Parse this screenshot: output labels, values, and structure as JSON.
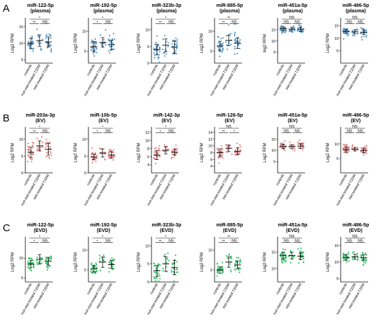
{
  "row_letters": [
    "A",
    "B",
    "C"
  ],
  "categories": [
    "controls",
    "non-met treated T2DM",
    "met treated T2DM"
  ],
  "chart_data": [
    {
      "row": "A",
      "type": "scatter",
      "title": "miR-122-5p",
      "subtitle": "(plasma)",
      "ylabel": "Log2 RPM",
      "ylim": [
        4,
        16
      ],
      "yticks": [
        5,
        10,
        15
      ],
      "series": [
        {
          "name": "controls",
          "center": 10,
          "sd": 1.5,
          "n": 30
        },
        {
          "name": "non-met treated T2DM",
          "center": 10.8,
          "sd": 1.7,
          "n": 12
        },
        {
          "name": "met treated T2DM",
          "center": 10.4,
          "sd": 1.5,
          "n": 25
        }
      ],
      "annotations": [
        {
          "from": 0,
          "to": 2,
          "label": "*"
        },
        {
          "from": 0,
          "to": 1,
          "label": "**"
        },
        {
          "from": 1,
          "to": 2,
          "label": "NS"
        }
      ]
    },
    {
      "row": "A",
      "type": "scatter",
      "title": "miR-192-5p",
      "subtitle": "(plasma)",
      "ylabel": "Log2 RPM",
      "ylim": [
        2,
        12
      ],
      "yticks": [
        5,
        10
      ],
      "series": [
        {
          "name": "controls",
          "center": 6.1,
          "sd": 1.3,
          "n": 30
        },
        {
          "name": "non-met treated T2DM",
          "center": 7.2,
          "sd": 1.2,
          "n": 12
        },
        {
          "name": "met treated T2DM",
          "center": 6.6,
          "sd": 1.2,
          "n": 25
        }
      ],
      "annotations": [
        {
          "from": 0,
          "to": 2,
          "label": "*"
        },
        {
          "from": 0,
          "to": 1,
          "label": "*"
        },
        {
          "from": 1,
          "to": 2,
          "label": "NS"
        }
      ]
    },
    {
      "row": "A",
      "type": "scatter",
      "title": "miR-323b-3p",
      "subtitle": "(plasma)",
      "ylabel": "Log2 RPM",
      "ylim": [
        0,
        12
      ],
      "yticks": [
        0,
        5,
        10
      ],
      "series": [
        {
          "name": "controls",
          "center": 4.1,
          "sd": 1.6,
          "n": 30
        },
        {
          "name": "non-met treated T2DM",
          "center": 5.4,
          "sd": 1.9,
          "n": 12
        },
        {
          "name": "met treated T2DM",
          "center": 4.8,
          "sd": 1.8,
          "n": 25
        }
      ],
      "annotations": [
        {
          "from": 0,
          "to": 2,
          "label": "*"
        },
        {
          "from": 0,
          "to": 1,
          "label": "**"
        },
        {
          "from": 1,
          "to": 2,
          "label": "NS"
        }
      ]
    },
    {
      "row": "A",
      "type": "scatter",
      "title": "miR-885-5p",
      "subtitle": "(plasma)",
      "ylabel": "Log2 RPM",
      "ylim": [
        2,
        12
      ],
      "yticks": [
        5,
        10
      ],
      "series": [
        {
          "name": "controls",
          "center": 6.3,
          "sd": 1.2,
          "n": 30
        },
        {
          "name": "non-met treated T2DM",
          "center": 7.7,
          "sd": 1.3,
          "n": 12
        },
        {
          "name": "met treated T2DM",
          "center": 7.0,
          "sd": 1.3,
          "n": 25
        }
      ],
      "annotations": [
        {
          "from": 0,
          "to": 2,
          "label": "**"
        },
        {
          "from": 0,
          "to": 1,
          "label": "**"
        },
        {
          "from": 1,
          "to": 2,
          "label": "NS"
        }
      ]
    },
    {
      "row": "A",
      "type": "scatter",
      "title": "miR-451a-5p",
      "subtitle": "(plasma)",
      "ylabel": "log2 RPM",
      "ylim": [
        0,
        18
      ],
      "yticks": [
        5,
        10,
        15
      ],
      "series": [
        {
          "name": "controls",
          "center": 15.6,
          "sd": 0.8,
          "n": 30
        },
        {
          "name": "non-met treated T2DM",
          "center": 15.4,
          "sd": 0.8,
          "n": 12
        },
        {
          "name": "met treated T2DM",
          "center": 15.3,
          "sd": 0.9,
          "n": 25
        }
      ],
      "annotations": [
        {
          "from": 0,
          "to": 2,
          "label": "NS"
        },
        {
          "from": 0,
          "to": 1,
          "label": "NS"
        },
        {
          "from": 1,
          "to": 2,
          "label": "NS"
        }
      ]
    },
    {
      "row": "A",
      "type": "scatter",
      "title": "miR-486-5p",
      "subtitle": "(plasma)",
      "ylabel": "Log2 RPM",
      "ylim": [
        0,
        16
      ],
      "yticks": [
        5,
        10,
        15
      ],
      "series": [
        {
          "name": "controls",
          "center": 12.8,
          "sd": 0.9,
          "n": 30
        },
        {
          "name": "non-met treated T2DM",
          "center": 12.6,
          "sd": 0.8,
          "n": 12
        },
        {
          "name": "met treated T2DM",
          "center": 12.4,
          "sd": 0.9,
          "n": 25
        }
      ],
      "annotations": [
        {
          "from": 0,
          "to": 2,
          "label": "NS"
        },
        {
          "from": 0,
          "to": 1,
          "label": "NS"
        },
        {
          "from": 1,
          "to": 2,
          "label": "NS"
        }
      ]
    },
    {
      "row": "B",
      "type": "scatter",
      "title": "miR-203a-3p",
      "subtitle": "(EV)",
      "ylabel": "Log2 RPM",
      "ylim": [
        0,
        12
      ],
      "yticks": [
        0,
        5,
        10
      ],
      "series": [
        {
          "name": "controls",
          "center": 6.1,
          "sd": 1.5,
          "n": 30
        },
        {
          "name": "non-met treated T2DM",
          "center": 8.0,
          "sd": 1.5,
          "n": 12
        },
        {
          "name": "met treated T2DM",
          "center": 7.0,
          "sd": 1.7,
          "n": 25
        }
      ],
      "annotations": [
        {
          "from": 0,
          "to": 2,
          "label": "*"
        },
        {
          "from": 0,
          "to": 1,
          "label": "**"
        },
        {
          "from": 1,
          "to": 2,
          "label": "NS"
        }
      ]
    },
    {
      "row": "B",
      "type": "scatter",
      "title": "miR-10b-5p",
      "subtitle": "(EV)",
      "ylabel": "Log2 RPM",
      "ylim": [
        0,
        12
      ],
      "yticks": [
        0,
        5,
        10
      ],
      "series": [
        {
          "name": "controls",
          "center": 4.7,
          "sd": 0.8,
          "n": 30
        },
        {
          "name": "non-met treated T2DM",
          "center": 5.9,
          "sd": 1.2,
          "n": 12
        },
        {
          "name": "met treated T2DM",
          "center": 5.3,
          "sd": 1.0,
          "n": 25
        }
      ],
      "annotations": [
        {
          "from": 0,
          "to": 2,
          "label": "*"
        },
        {
          "from": 0,
          "to": 1,
          "label": "*"
        },
        {
          "from": 1,
          "to": 2,
          "label": "NS"
        }
      ]
    },
    {
      "row": "B",
      "type": "scatter",
      "title": "miR-142-3p",
      "subtitle": "(EV)",
      "ylabel": "Log2 RPM",
      "ylim": [
        2,
        12
      ],
      "yticks": [
        4,
        6,
        8,
        10,
        12
      ],
      "series": [
        {
          "name": "controls",
          "center": 6.4,
          "sd": 1.1,
          "n": 30
        },
        {
          "name": "non-met treated T2DM",
          "center": 7.6,
          "sd": 0.9,
          "n": 12
        },
        {
          "name": "met treated T2DM",
          "center": 7.1,
          "sd": 0.7,
          "n": 25
        }
      ],
      "annotations": [
        {
          "from": 0,
          "to": 2,
          "label": "*"
        },
        {
          "from": 0,
          "to": 1,
          "label": "*"
        },
        {
          "from": 1,
          "to": 2,
          "label": "NS"
        }
      ]
    },
    {
      "row": "B",
      "type": "scatter",
      "title": "miR-126-5p",
      "subtitle": "(EV)",
      "ylabel": "Log2 RPM",
      "ylim": [
        2,
        14
      ],
      "yticks": [
        4,
        6,
        8,
        10,
        12,
        14
      ],
      "series": [
        {
          "name": "controls",
          "center": 8.0,
          "sd": 1.1,
          "n": 30
        },
        {
          "name": "non-met treated T2DM",
          "center": 9.3,
          "sd": 1.0,
          "n": 12
        },
        {
          "name": "met treated T2DM",
          "center": 8.4,
          "sd": 1.0,
          "n": 25
        }
      ],
      "annotations": [
        {
          "from": 0,
          "to": 2,
          "label": "NS"
        },
        {
          "from": 0,
          "to": 1,
          "label": "**"
        },
        {
          "from": 1,
          "to": 2,
          "label": "*"
        }
      ]
    },
    {
      "row": "B",
      "type": "scatter",
      "title": "miR-451a-5p",
      "subtitle": "(EV)",
      "ylabel": "Log2 RPM",
      "ylim": [
        0,
        18
      ],
      "yticks": [
        5,
        10,
        15
      ],
      "series": [
        {
          "name": "controls",
          "center": 11.8,
          "sd": 0.9,
          "n": 30
        },
        {
          "name": "non-met treated T2DM",
          "center": 11.7,
          "sd": 0.8,
          "n": 12
        },
        {
          "name": "met treated T2DM",
          "center": 11.9,
          "sd": 1.0,
          "n": 25
        }
      ],
      "annotations": [
        {
          "from": 0,
          "to": 2,
          "label": "NS"
        },
        {
          "from": 0,
          "to": 1,
          "label": "NS"
        },
        {
          "from": 1,
          "to": 2,
          "label": "NS"
        }
      ]
    },
    {
      "row": "B",
      "type": "scatter",
      "title": "miR-486-5p",
      "subtitle": "(EV)",
      "ylabel": "Log2 RPM",
      "ylim": [
        0,
        14
      ],
      "yticks": [
        5,
        10
      ],
      "series": [
        {
          "name": "controls",
          "center": 8.0,
          "sd": 0.9,
          "n": 30
        },
        {
          "name": "non-met treated T2DM",
          "center": 8.2,
          "sd": 0.6,
          "n": 12
        },
        {
          "name": "met treated T2DM",
          "center": 7.8,
          "sd": 0.8,
          "n": 25
        }
      ],
      "annotations": [
        {
          "from": 0,
          "to": 2,
          "label": "NS"
        },
        {
          "from": 0,
          "to": 1,
          "label": "NS"
        },
        {
          "from": 1,
          "to": 2,
          "label": "NS"
        }
      ]
    },
    {
      "row": "C",
      "type": "scatter",
      "title": "miR-122-5p",
      "subtitle": "(EVD)",
      "ylabel": "Log2 RPM",
      "ylim": [
        4,
        14
      ],
      "yticks": [
        5,
        10
      ],
      "series": [
        {
          "name": "controls",
          "center": 8.5,
          "sd": 0.9,
          "n": 30
        },
        {
          "name": "non-met treated T2DM",
          "center": 9.7,
          "sd": 1.2,
          "n": 12
        },
        {
          "name": "met treated T2DM",
          "center": 9.2,
          "sd": 1.0,
          "n": 25
        }
      ],
      "annotations": [
        {
          "from": 0,
          "to": 2,
          "label": "*"
        },
        {
          "from": 0,
          "to": 1,
          "label": "*"
        },
        {
          "from": 1,
          "to": 2,
          "label": "NS"
        }
      ]
    },
    {
      "row": "C",
      "type": "scatter",
      "title": "miR-192-5p",
      "subtitle": "(EVD)",
      "ylabel": "Log2 RPM",
      "ylim": [
        2,
        12
      ],
      "yticks": [
        5,
        10
      ],
      "series": [
        {
          "name": "controls",
          "center": 5.3,
          "sd": 0.8,
          "n": 30
        },
        {
          "name": "non-met treated T2DM",
          "center": 7.0,
          "sd": 1.3,
          "n": 12
        },
        {
          "name": "met treated T2DM",
          "center": 6.4,
          "sd": 1.0,
          "n": 25
        }
      ],
      "annotations": [
        {
          "from": 0,
          "to": 2,
          "label": "*"
        },
        {
          "from": 0,
          "to": 1,
          "label": "*"
        },
        {
          "from": 1,
          "to": 2,
          "label": "NS"
        }
      ]
    },
    {
      "row": "C",
      "type": "scatter",
      "title": "miR-323b-3p",
      "subtitle": "(EVD)",
      "ylabel": "Log2 RPM",
      "ylim": [
        0,
        11
      ],
      "yticks": [
        0,
        5,
        10
      ],
      "series": [
        {
          "name": "controls",
          "center": 3.1,
          "sd": 1.5,
          "n": 30
        },
        {
          "name": "non-met treated T2DM",
          "center": 5.0,
          "sd": 2.0,
          "n": 12
        },
        {
          "name": "met treated T2DM",
          "center": 4.0,
          "sd": 2.0,
          "n": 25
        }
      ],
      "annotations": [
        {
          "from": 0,
          "to": 2,
          "label": "*"
        },
        {
          "from": 0,
          "to": 1,
          "label": "**"
        },
        {
          "from": 1,
          "to": 2,
          "label": "NS"
        }
      ]
    },
    {
      "row": "C",
      "type": "scatter",
      "title": "miR-885-5p",
      "subtitle": "(EVD)",
      "ylabel": "Log2 RPM",
      "ylim": [
        2,
        12
      ],
      "yticks": [
        5,
        10
      ],
      "series": [
        {
          "name": "controls",
          "center": 5.0,
          "sd": 0.8,
          "n": 30
        },
        {
          "name": "non-met treated T2DM",
          "center": 7.0,
          "sd": 1.3,
          "n": 12
        },
        {
          "name": "met treated T2DM",
          "center": 6.3,
          "sd": 1.0,
          "n": 25
        }
      ],
      "annotations": [
        {
          "from": 0,
          "to": 2,
          "label": "**"
        },
        {
          "from": 0,
          "to": 1,
          "label": "**"
        },
        {
          "from": 1,
          "to": 2,
          "label": "NS"
        }
      ]
    },
    {
      "row": "C",
      "type": "scatter",
      "title": "miR-451a-5p",
      "subtitle": "(EVD)",
      "ylabel": "Log2 RPM",
      "ylim": [
        6,
        18
      ],
      "yticks": [
        10,
        15
      ],
      "series": [
        {
          "name": "controls",
          "center": 14.0,
          "sd": 1.0,
          "n": 30
        },
        {
          "name": "non-met treated T2DM",
          "center": 14.0,
          "sd": 1.0,
          "n": 12
        },
        {
          "name": "met treated T2DM",
          "center": 13.8,
          "sd": 1.1,
          "n": 25
        }
      ],
      "annotations": [
        {
          "from": 0,
          "to": 2,
          "label": "NS"
        },
        {
          "from": 0,
          "to": 1,
          "label": "NS"
        },
        {
          "from": 1,
          "to": 2,
          "label": "NS"
        }
      ]
    },
    {
      "row": "C",
      "type": "scatter",
      "title": "miR-486-5p",
      "subtitle": "(EVD)",
      "ylabel": "Log2 RPM",
      "ylim": [
        4,
        16
      ],
      "yticks": [
        5,
        10,
        15
      ],
      "series": [
        {
          "name": "controls",
          "center": 11.4,
          "sd": 0.9,
          "n": 30
        },
        {
          "name": "non-met treated T2DM",
          "center": 11.6,
          "sd": 0.8,
          "n": 12
        },
        {
          "name": "met treated T2DM",
          "center": 11.3,
          "sd": 0.9,
          "n": 25
        }
      ],
      "annotations": [
        {
          "from": 0,
          "to": 2,
          "label": "NS"
        },
        {
          "from": 0,
          "to": 1,
          "label": "NS"
        },
        {
          "from": 1,
          "to": 2,
          "label": "NS"
        }
      ]
    }
  ],
  "colors": {
    "A": "#4f93c6",
    "B": "#e08080",
    "C": "#2ec062",
    "axis": "#000000"
  }
}
